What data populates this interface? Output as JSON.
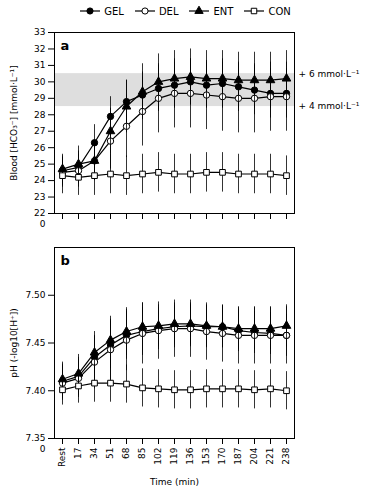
{
  "chart_data": [
    {
      "type": "line",
      "title": "a",
      "categories": [
        "Rest",
        "17",
        "34",
        "51",
        "68",
        "85",
        "102",
        "119",
        "136",
        "153",
        "170",
        "187",
        "204",
        "221",
        "238"
      ],
      "series": [
        {
          "name": "GEL",
          "color": "#000000",
          "marker": "circle",
          "values": [
            24.6,
            24.8,
            26.3,
            27.9,
            28.8,
            29.2,
            29.6,
            29.8,
            30.0,
            29.8,
            29.9,
            29.7,
            29.5,
            29.3,
            29.3
          ],
          "errors": [
            0.9,
            1.0,
            1.1,
            1.2,
            1.3,
            1.4,
            1.4,
            1.4,
            1.4,
            1.4,
            1.5,
            1.5,
            1.5,
            1.5,
            1.5
          ]
        },
        {
          "name": "DEL",
          "color": "#000000",
          "marker": "circle-open",
          "values": [
            24.5,
            24.6,
            25.2,
            26.4,
            27.3,
            28.2,
            29.0,
            29.3,
            29.3,
            29.2,
            29.1,
            29.0,
            29.0,
            29.1,
            29.1
          ],
          "errors": [
            0.9,
            1.0,
            1.2,
            1.7,
            1.9,
            2.1,
            2.1,
            2.1,
            2.1,
            2.1,
            2.1,
            2.1,
            2.1,
            2.1,
            2.1
          ]
        },
        {
          "name": "ENT",
          "color": "#000000",
          "marker": "triangle",
          "values": [
            24.7,
            25.0,
            25.2,
            27.0,
            28.5,
            29.4,
            30.0,
            30.2,
            30.3,
            30.2,
            30.2,
            30.1,
            30.1,
            30.1,
            30.2
          ],
          "errors": [
            0.9,
            1.1,
            1.2,
            1.4,
            1.6,
            1.7,
            1.7,
            1.7,
            1.7,
            1.7,
            1.7,
            1.7,
            1.7,
            1.7,
            1.7
          ]
        },
        {
          "name": "CON",
          "color": "#000000",
          "marker": "square-open",
          "values": [
            24.3,
            24.2,
            24.3,
            24.4,
            24.3,
            24.4,
            24.5,
            24.4,
            24.4,
            24.5,
            24.5,
            24.4,
            24.4,
            24.4,
            24.3
          ],
          "errors": [
            1.1,
            1.1,
            1.2,
            1.2,
            1.2,
            1.2,
            1.2,
            1.2,
            1.2,
            1.2,
            1.2,
            1.2,
            1.2,
            1.2,
            1.2
          ]
        }
      ],
      "ylabel": "Blood [HCO₃⁻] [mmol·L⁻¹]",
      "ylim": [
        22,
        33
      ],
      "yticks": [
        22,
        23,
        24,
        25,
        26,
        27,
        28,
        29,
        30,
        31,
        32,
        33
      ],
      "band": {
        "low": 28.5,
        "high": 30.5,
        "color": "#d0d0d0"
      },
      "annotations": [
        {
          "text": "+ 6 mmol·L⁻¹",
          "y": 30.5
        },
        {
          "text": "+ 4 mmol·L⁻¹",
          "y": 28.5
        },
        {
          "text": "0"
        }
      ],
      "tick_labels": "y",
      "legend": "top"
    },
    {
      "type": "line",
      "title": "b",
      "categories": [
        "Rest",
        "17",
        "34",
        "51",
        "68",
        "85",
        "102",
        "119",
        "136",
        "153",
        "170",
        "187",
        "204",
        "221",
        "238"
      ],
      "series": [
        {
          "name": "GEL",
          "color": "#000000",
          "marker": "circle",
          "values": [
            7.41,
            7.415,
            7.435,
            7.448,
            7.458,
            7.462,
            7.465,
            7.467,
            7.468,
            7.467,
            7.467,
            7.463,
            7.461,
            7.46,
            7.458
          ],
          "errors": [
            0.018,
            0.02,
            0.022,
            0.025,
            0.025,
            0.025,
            0.022,
            0.022,
            0.022,
            0.022,
            0.022,
            0.022,
            0.022,
            0.022,
            0.022
          ]
        },
        {
          "name": "DEL",
          "color": "#000000",
          "marker": "circle-open",
          "values": [
            7.408,
            7.413,
            7.43,
            7.443,
            7.453,
            7.46,
            7.463,
            7.465,
            7.465,
            7.462,
            7.46,
            7.458,
            7.458,
            7.458,
            7.458
          ],
          "errors": [
            0.018,
            0.02,
            0.028,
            0.032,
            0.032,
            0.032,
            0.03,
            0.03,
            0.03,
            0.03,
            0.03,
            0.03,
            0.03,
            0.03,
            0.03
          ]
        },
        {
          "name": "ENT",
          "color": "#000000",
          "marker": "triangle",
          "values": [
            7.412,
            7.418,
            7.44,
            7.453,
            7.462,
            7.467,
            7.468,
            7.47,
            7.47,
            7.468,
            7.467,
            7.465,
            7.465,
            7.465,
            7.468
          ],
          "errors": [
            0.018,
            0.02,
            0.022,
            0.025,
            0.025,
            0.025,
            0.022,
            0.022,
            0.022,
            0.022,
            0.022,
            0.022,
            0.022,
            0.022,
            0.022
          ]
        },
        {
          "name": "CON",
          "color": "#000000",
          "marker": "square-open",
          "values": [
            7.401,
            7.405,
            7.408,
            7.408,
            7.407,
            7.403,
            7.402,
            7.401,
            7.401,
            7.402,
            7.402,
            7.402,
            7.401,
            7.402,
            7.4
          ],
          "errors": [
            0.016,
            0.018,
            0.02,
            0.02,
            0.02,
            0.02,
            0.02,
            0.02,
            0.02,
            0.02,
            0.02,
            0.02,
            0.02,
            0.02,
            0.02
          ]
        }
      ],
      "xlabel": "Time (min)",
      "ylabel": "pH (-log10[H⁺])",
      "ylim": [
        7.35,
        7.55
      ],
      "yticks": [
        7.35,
        {
          "value": 7.4,
          "label": "7.40"
        },
        7.45,
        {
          "value": 7.5,
          "label": "7.50"
        }
      ],
      "annotations": [
        {
          "text": "0"
        }
      ]
    }
  ]
}
